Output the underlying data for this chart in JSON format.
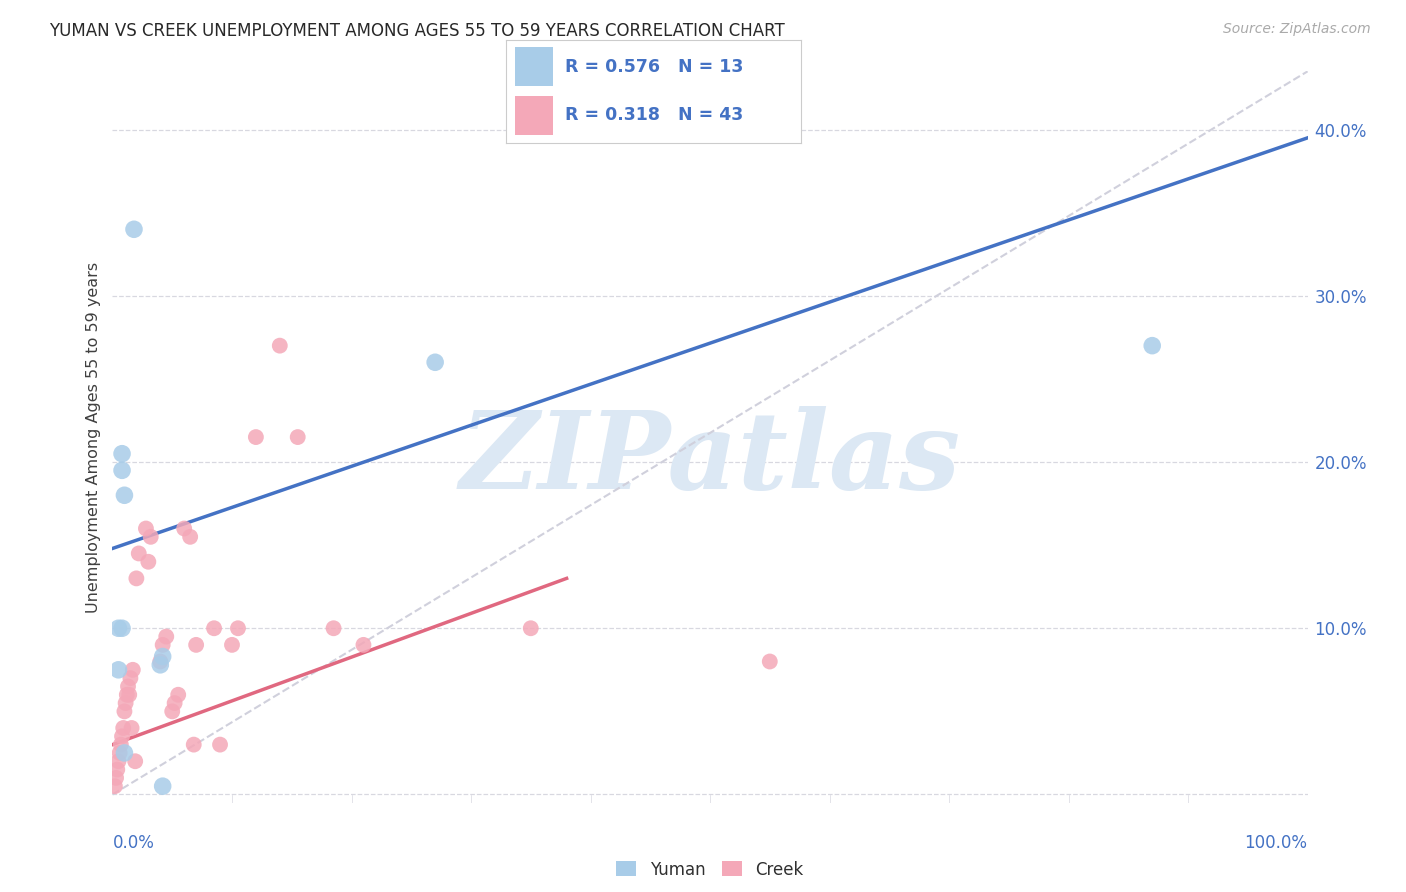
{
  "title": "YUMAN VS CREEK UNEMPLOYMENT AMONG AGES 55 TO 59 YEARS CORRELATION CHART",
  "source": "Source: ZipAtlas.com",
  "ylabel": "Unemployment Among Ages 55 to 59 years",
  "xlim": [
    0,
    1.0
  ],
  "ylim": [
    -0.005,
    0.435
  ],
  "xtick_left_label": "0.0%",
  "xtick_right_label": "100.0%",
  "yticks": [
    0.1,
    0.2,
    0.3,
    0.4
  ],
  "ytick_labels": [
    "10.0%",
    "20.0%",
    "30.0%",
    "40.0%"
  ],
  "grid_yticks": [
    0.0,
    0.1,
    0.2,
    0.3,
    0.4
  ],
  "legend_r_yuman": "R = 0.576",
  "legend_n_yuman": "N = 13",
  "legend_r_creek": "R = 0.318",
  "legend_n_creek": "N = 43",
  "yuman_color": "#a8cce8",
  "creek_color": "#f4a8b8",
  "yuman_line_color": "#4472c4",
  "creek_line_color": "#e06880",
  "diag_line_color": "#d0d0dc",
  "grid_color": "#d8d8e0",
  "title_color": "#282828",
  "source_color": "#aaaaaa",
  "legend_text_color": "#4472c4",
  "watermark_color": "#dce8f4",
  "yuman_x": [
    0.018,
    0.008,
    0.008,
    0.01,
    0.008,
    0.042,
    0.04,
    0.042,
    0.87,
    0.27,
    0.01,
    0.005,
    0.005
  ],
  "yuman_y": [
    0.34,
    0.205,
    0.195,
    0.18,
    0.1,
    0.083,
    0.078,
    0.005,
    0.27,
    0.26,
    0.025,
    0.1,
    0.075
  ],
  "creek_x": [
    0.002,
    0.003,
    0.004,
    0.005,
    0.006,
    0.007,
    0.008,
    0.009,
    0.01,
    0.011,
    0.012,
    0.013,
    0.014,
    0.015,
    0.016,
    0.017,
    0.019,
    0.02,
    0.022,
    0.028,
    0.03,
    0.032,
    0.04,
    0.042,
    0.045,
    0.05,
    0.052,
    0.055,
    0.06,
    0.065,
    0.068,
    0.07,
    0.085,
    0.09,
    0.1,
    0.105,
    0.12,
    0.14,
    0.155,
    0.185,
    0.21,
    0.35,
    0.55
  ],
  "creek_y": [
    0.005,
    0.01,
    0.015,
    0.02,
    0.025,
    0.03,
    0.035,
    0.04,
    0.05,
    0.055,
    0.06,
    0.065,
    0.06,
    0.07,
    0.04,
    0.075,
    0.02,
    0.13,
    0.145,
    0.16,
    0.14,
    0.155,
    0.08,
    0.09,
    0.095,
    0.05,
    0.055,
    0.06,
    0.16,
    0.155,
    0.03,
    0.09,
    0.1,
    0.03,
    0.09,
    0.1,
    0.215,
    0.27,
    0.215,
    0.1,
    0.09,
    0.1,
    0.08
  ],
  "yuman_trendline_x": [
    0.0,
    1.0
  ],
  "yuman_trendline_y": [
    0.148,
    0.395
  ],
  "creek_trendline_x": [
    0.0,
    0.38
  ],
  "creek_trendline_y": [
    0.03,
    0.13
  ],
  "diag_trendline_x": [
    0.0,
    1.0
  ],
  "diag_trendline_y": [
    0.0,
    0.435
  ]
}
